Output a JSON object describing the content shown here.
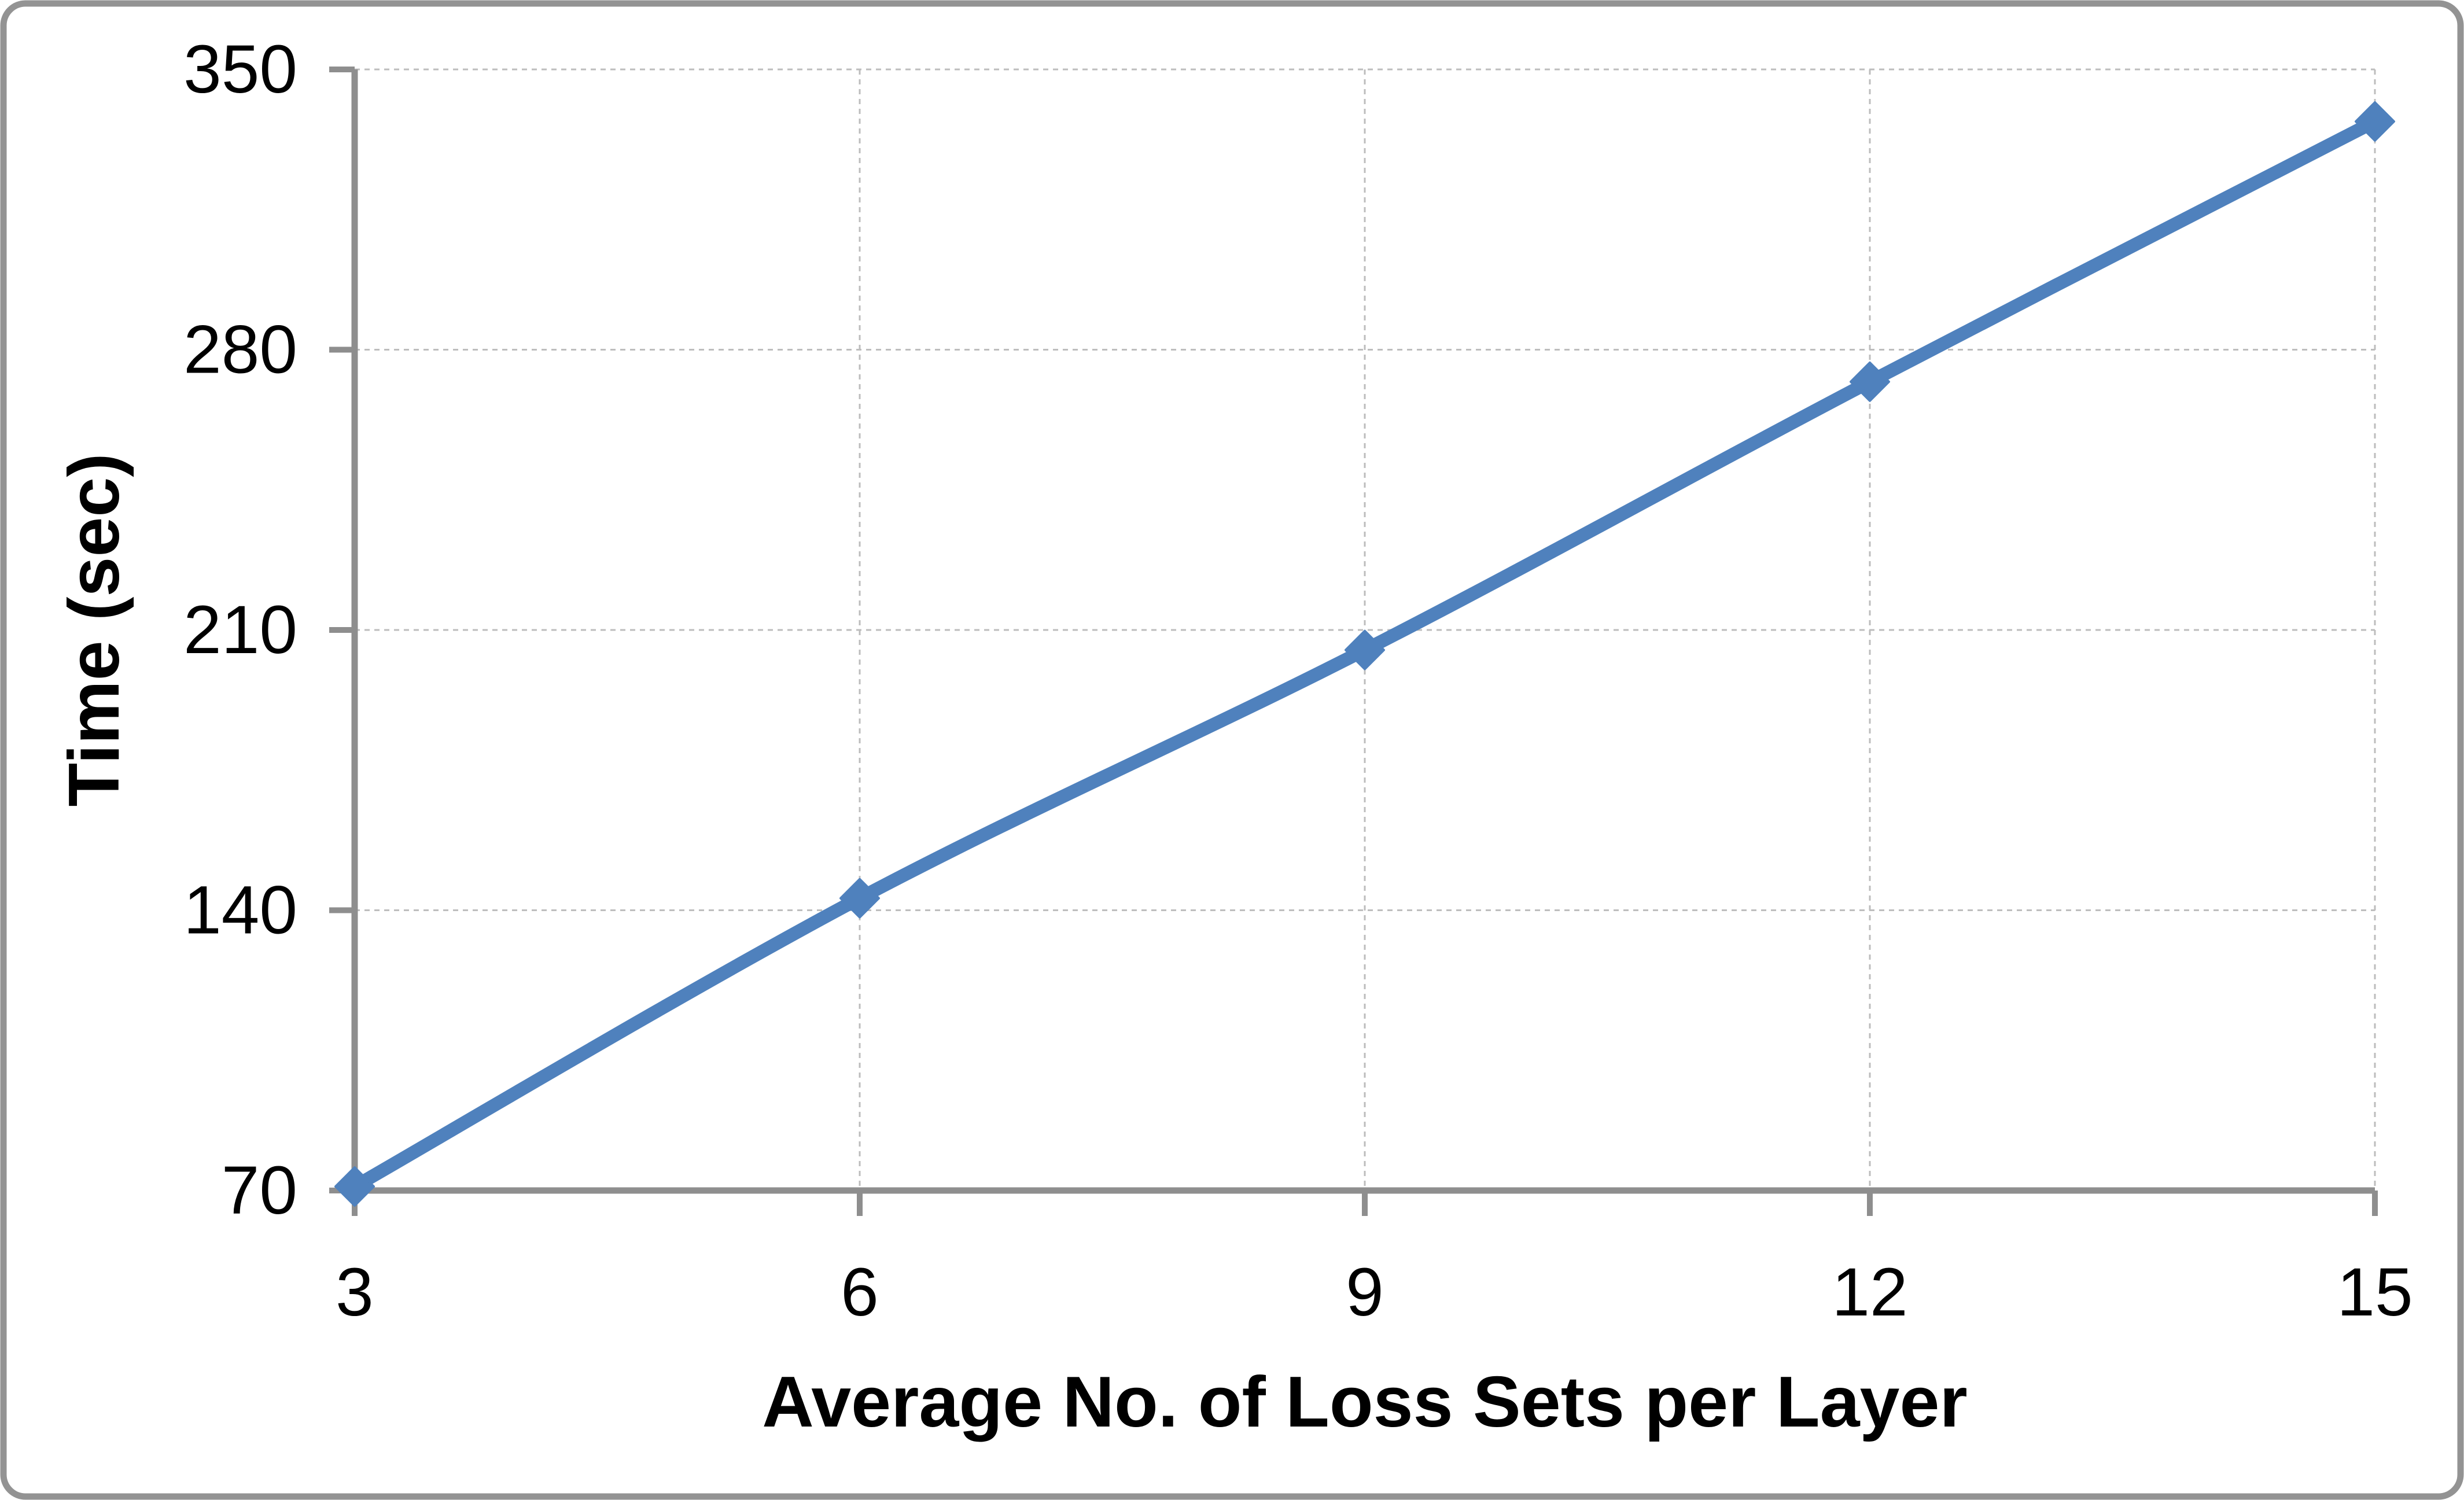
{
  "chart_data": {
    "type": "line",
    "title": "",
    "xlabel": "Average No. of Loss Sets per Layer",
    "ylabel": "Time (sec)",
    "x": [
      3,
      6,
      9,
      12,
      15
    ],
    "series": [
      {
        "name": "Time (sec)",
        "values": [
          71,
          143,
          205,
          272,
          337
        ]
      }
    ],
    "x_tick_labels": [
      "3",
      "6",
      "9",
      "12",
      "15"
    ],
    "y_tick_labels": [
      "70",
      "140",
      "210",
      "280",
      "350"
    ],
    "y_ticks": [
      70,
      140,
      210,
      280,
      350
    ],
    "x_ticks": [
      3,
      6,
      9,
      12,
      15
    ],
    "xlim": [
      3,
      15
    ],
    "ylim": [
      70,
      350
    ],
    "grid": "both-dashed",
    "legend_position": "none",
    "line_smoothing": true,
    "marker": "diamond",
    "colors": {
      "series_line": "#4F81BD",
      "marker_fill": "#4F81BD",
      "axis_line": "#8E8E8E",
      "tick_mark": "#8E8E8E",
      "gridline": "#BDBDBD",
      "chart_border": "#939393",
      "label_text": "#000000",
      "background": "#FFFFFF"
    }
  }
}
